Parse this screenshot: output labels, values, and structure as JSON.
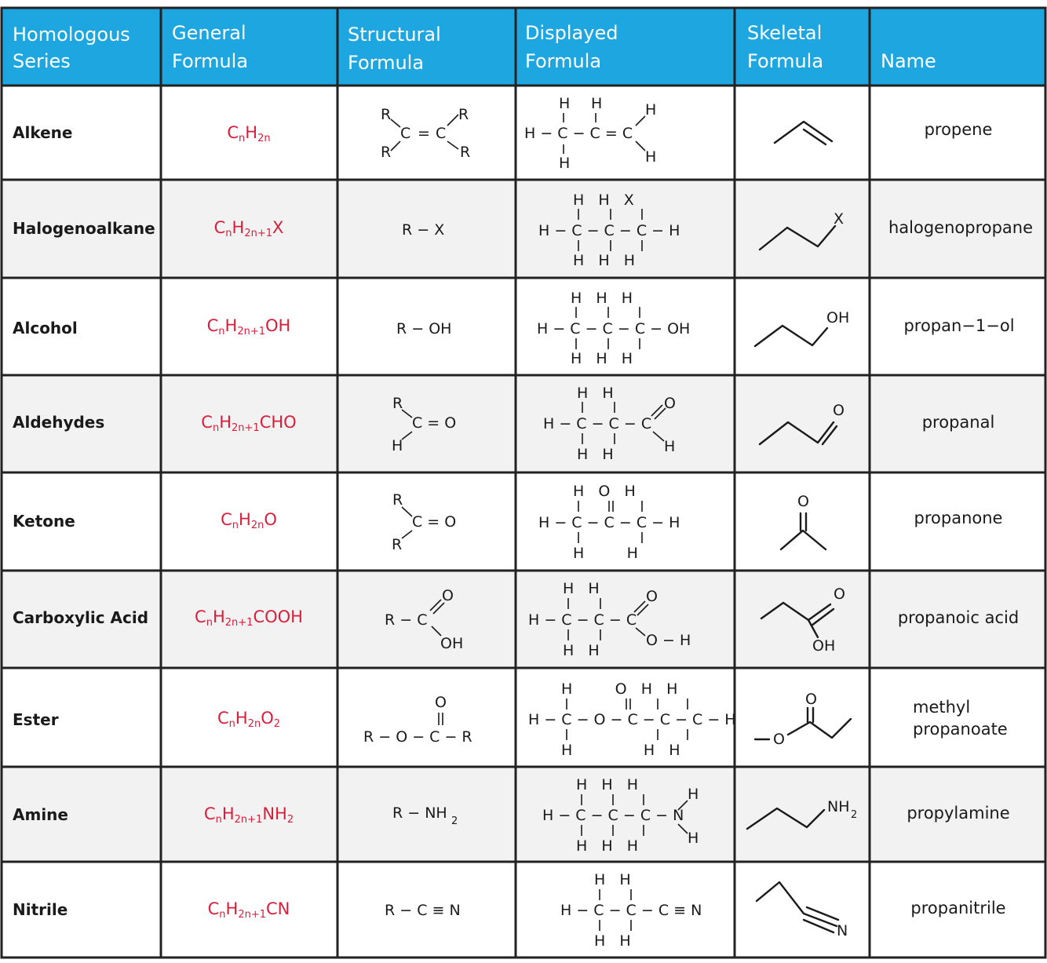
{
  "colors": {
    "header_bg": "#1ea6e0",
    "formula_red": "#d81e3a",
    "row_alt": "#f2f2f2",
    "row_plain": "#ffffff",
    "grid": "#222222"
  },
  "headers": [
    {
      "line1": "Homologous",
      "line2": "Series"
    },
    {
      "line1": "General",
      "line2": "Formula"
    },
    {
      "line1": "Structural",
      "line2": "Formula"
    },
    {
      "line1": "Displayed",
      "line2": "Formula"
    },
    {
      "line1": "Skeletal",
      "line2": "Formula"
    },
    {
      "line1": "",
      "line2": "Name"
    }
  ],
  "rows": [
    {
      "series": "Alkene",
      "general": {
        "main": "C",
        "s1": "n",
        "mid": "H",
        "s2": "2n",
        "tail": ""
      },
      "name1": "propene",
      "name2": ""
    },
    {
      "series": "Halogenoalkane",
      "general": {
        "main": "C",
        "s1": "n",
        "mid": "H",
        "s2": "2n+1",
        "tail": "X"
      },
      "name1": "halogenopropane",
      "name2": ""
    },
    {
      "series": "Alcohol",
      "general": {
        "main": "C",
        "s1": "n",
        "mid": "H",
        "s2": "2n+1",
        "tail": "OH"
      },
      "name1": "propan−1−ol",
      "name2": ""
    },
    {
      "series": "Aldehydes",
      "general": {
        "main": "C",
        "s1": "n",
        "mid": "H",
        "s2": "2n+1",
        "tail": "CHO"
      },
      "name1": "propanal",
      "name2": ""
    },
    {
      "series": "Ketone",
      "general": {
        "main": "C",
        "s1": "n",
        "mid": "H",
        "s2": "2n",
        "tail": "O"
      },
      "name1": "propanone",
      "name2": ""
    },
    {
      "series": "Carboxylic Acid",
      "general": {
        "main": "C",
        "s1": "n",
        "mid": "H",
        "s2": "2n+1",
        "tail": "COOH"
      },
      "name1": "propanoic acid",
      "name2": ""
    },
    {
      "series": "Ester",
      "general": {
        "main": "C",
        "s1": "n",
        "mid": "H",
        "s2": "2n",
        "tail": "O",
        "s3": "2"
      },
      "name1": "methyl",
      "name2": "propanoate"
    },
    {
      "series": "Amine",
      "general": {
        "main": "C",
        "s1": "n",
        "mid": "H",
        "s2": "2n+1",
        "tail": "NH",
        "s3": "2"
      },
      "name1": "propylamine",
      "name2": ""
    },
    {
      "series": "Nitrile",
      "general": {
        "main": "C",
        "s1": "n",
        "mid": "H",
        "s2": "2n+1",
        "tail": "CN"
      },
      "name1": "propanitrile",
      "name2": ""
    }
  ],
  "structural": {
    "alkene": {
      "r": "R",
      "c": "C",
      "eq": "="
    },
    "halogenoalkane": {
      "text": "R − X"
    },
    "alcohol": {
      "text": "R − OH"
    },
    "aldehyde": {
      "r": "R",
      "h": "H",
      "co": "C = O"
    },
    "ketone": {
      "r": "R",
      "co": "C = O"
    },
    "carboxylic": {
      "rc": "R − C",
      "o": "O",
      "oh": "OH"
    },
    "ester": {
      "o": "O",
      "dbl": "||",
      "chain": "R − O − C − R"
    },
    "amine": {
      "main": "R − NH",
      "sub": "2"
    },
    "nitrile": {
      "text": "R − C ≡ N"
    }
  },
  "displayed": {
    "alkene": {
      "top": "H  H",
      "mid": "H − C − C = C",
      "h": "H"
    },
    "halogenoalkane": {
      "top": "H   H   X",
      "mid": "H − C − C − C − H",
      "bot": "H   H   H"
    },
    "alcohol": {
      "top": "H   H   H",
      "mid": "H − C − C − C − OH",
      "bot": "H   H   H"
    },
    "aldehyde": {
      "top": "H   H",
      "mid": "H − C − C − C",
      "bot": "H   H",
      "o": "O",
      "h": "H"
    },
    "ketone": {
      "top": "H   O   H",
      "mid": "H − C − C − C − H",
      "bot": "H         H"
    },
    "carboxylic": {
      "top": "H   H",
      "mid": "H − C − C − C",
      "bot": "H   H",
      "o": "O",
      "oh": "O − H"
    },
    "ester": {
      "top": "H         O   H   H",
      "mid": "H − C − O − C − C − C − H",
      "bot": "H               H   H"
    },
    "amine": {
      "top": "H   H   H",
      "mid": "H − C − C − C − N",
      "bot": "H   H   H",
      "h": "H"
    },
    "nitrile": {
      "top": "H   H",
      "mid": "H − C − C − C ≡ N",
      "bot": "H   H"
    }
  },
  "skeletal": {
    "halogenoalkane": "X",
    "alcohol": "OH",
    "aldehyde": "O",
    "ketone": "O",
    "carboxylic": {
      "o": "O",
      "oh": "OH"
    },
    "ester": {
      "o": "O",
      "om": "O"
    },
    "amine": {
      "main": "NH",
      "sub": "2"
    },
    "nitrile": "N"
  }
}
